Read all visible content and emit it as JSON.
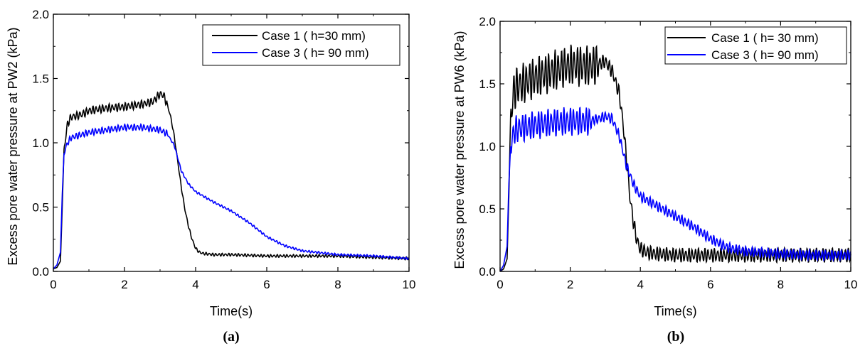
{
  "chart_data": [
    {
      "type": "line",
      "panel_label": "(a)",
      "xlabel": "Time(s)",
      "ylabel": "Excess pore water pressure at PW2 (kPa)",
      "xlim": [
        0,
        10
      ],
      "ylim": [
        0,
        2.0
      ],
      "xticks": [
        0,
        2,
        4,
        6,
        8,
        10
      ],
      "yticks": [
        0.0,
        0.5,
        1.0,
        1.5,
        2.0
      ],
      "ytick_labels": [
        "0.0",
        "0.5",
        "1.0",
        "1.5",
        "2.0"
      ],
      "grid": false,
      "legend": "top-right",
      "series": [
        {
          "name": "Case 1 ( h=30 mm)",
          "color": "#000000",
          "x": [
            0,
            0.1,
            0.2,
            0.25,
            0.3,
            0.4,
            0.5,
            0.8,
            1.0,
            1.5,
            2.0,
            2.5,
            2.8,
            3.0,
            3.1,
            3.2,
            3.3,
            3.4,
            3.5,
            3.6,
            3.7,
            3.8,
            3.9,
            4.0,
            4.1,
            4.2,
            4.5,
            5.0,
            6.0,
            7.0,
            8.0,
            9.0,
            10.0
          ],
          "y": [
            0.02,
            0.03,
            0.08,
            0.5,
            0.95,
            1.15,
            1.2,
            1.22,
            1.25,
            1.27,
            1.28,
            1.3,
            1.32,
            1.38,
            1.37,
            1.3,
            1.2,
            1.05,
            0.85,
            0.65,
            0.48,
            0.35,
            0.25,
            0.18,
            0.15,
            0.14,
            0.13,
            0.13,
            0.12,
            0.12,
            0.12,
            0.11,
            0.1
          ],
          "oscillation": 0.025
        },
        {
          "name": "Case 3 ( h= 90 mm)",
          "color": "#0000FF",
          "x": [
            0,
            0.1,
            0.2,
            0.25,
            0.3,
            0.4,
            0.5,
            1.0,
            1.5,
            2.0,
            2.5,
            3.0,
            3.2,
            3.4,
            3.5,
            3.6,
            3.8,
            4.0,
            4.5,
            5.0,
            5.5,
            6.0,
            6.5,
            7.0,
            8.0,
            9.0,
            10.0
          ],
          "y": [
            0.02,
            0.05,
            0.15,
            0.6,
            0.92,
            1.0,
            1.04,
            1.08,
            1.1,
            1.12,
            1.12,
            1.1,
            1.07,
            0.98,
            0.88,
            0.78,
            0.68,
            0.62,
            0.54,
            0.47,
            0.38,
            0.27,
            0.2,
            0.16,
            0.13,
            0.12,
            0.1
          ],
          "oscillation": 0.02
        }
      ]
    },
    {
      "type": "line",
      "panel_label": "(b)",
      "xlabel": "Time(s)",
      "ylabel": "Excess pore water pressure at PW6 (kPa)",
      "xlim": [
        0,
        10
      ],
      "ylim": [
        0,
        2.0
      ],
      "xticks": [
        0,
        2,
        4,
        6,
        8,
        10
      ],
      "yticks": [
        0.0,
        0.5,
        1.0,
        1.5,
        2.0
      ],
      "ytick_labels": [
        "0.0",
        "0.5",
        "1.0",
        "1.5",
        "2.0"
      ],
      "grid": false,
      "legend": "top-right",
      "series": [
        {
          "name": "Case 1 ( h= 30 mm)",
          "color": "#000000",
          "x": [
            0,
            0.1,
            0.2,
            0.25,
            0.3,
            0.4,
            0.5,
            1.0,
            1.5,
            2.0,
            2.5,
            2.8,
            3.0,
            3.2,
            3.4,
            3.5,
            3.6,
            3.7,
            3.8,
            3.9,
            4.0,
            4.2,
            4.5,
            5.0,
            6.0,
            7.0,
            8.0,
            9.0,
            10.0
          ],
          "y": [
            0.0,
            0.02,
            0.1,
            0.6,
            1.25,
            1.45,
            1.48,
            1.55,
            1.6,
            1.65,
            1.64,
            1.66,
            1.68,
            1.6,
            1.42,
            1.2,
            0.92,
            0.6,
            0.4,
            0.25,
            0.18,
            0.15,
            0.14,
            0.13,
            0.13,
            0.13,
            0.13,
            0.13,
            0.13
          ],
          "oscillation": 0.13,
          "osc_range": [
            0.3,
            2.8
          ]
        },
        {
          "name": "Case 3 ( h= 90 mm)",
          "color": "#0000FF",
          "x": [
            0,
            0.1,
            0.2,
            0.25,
            0.3,
            0.4,
            0.5,
            1.0,
            1.5,
            2.0,
            2.5,
            2.8,
            3.0,
            3.2,
            3.4,
            3.6,
            3.8,
            4.0,
            4.5,
            5.0,
            5.5,
            6.0,
            6.5,
            7.0,
            8.0,
            9.0,
            10.0
          ],
          "y": [
            0.0,
            0.05,
            0.2,
            0.7,
            1.0,
            1.12,
            1.14,
            1.17,
            1.19,
            1.2,
            1.2,
            1.22,
            1.24,
            1.22,
            1.08,
            0.85,
            0.7,
            0.6,
            0.52,
            0.44,
            0.36,
            0.26,
            0.19,
            0.16,
            0.14,
            0.13,
            0.13
          ],
          "oscillation": 0.09,
          "osc_range": [
            0.3,
            2.6
          ]
        }
      ]
    }
  ]
}
